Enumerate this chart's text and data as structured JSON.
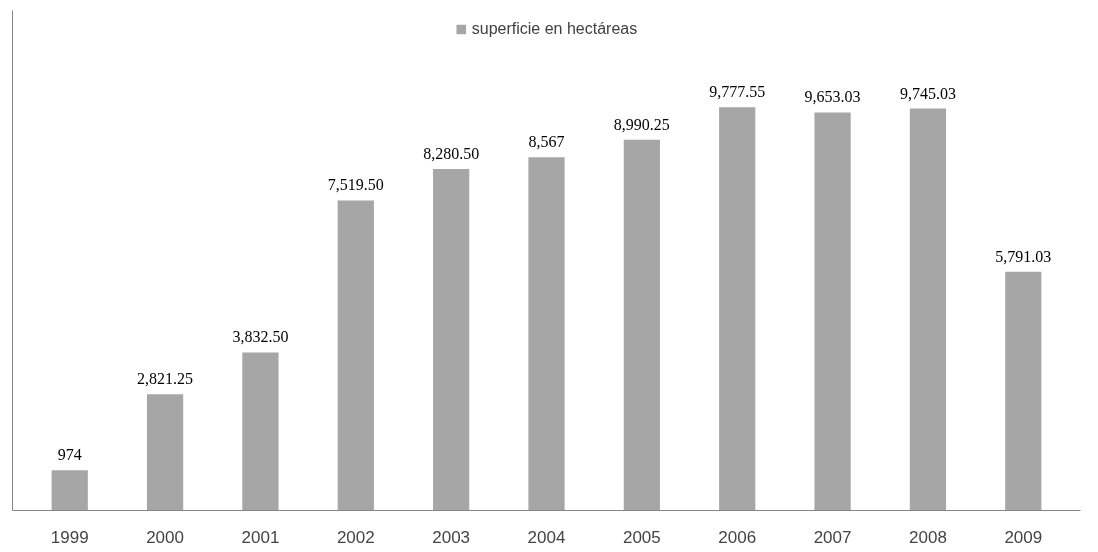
{
  "chart_data": {
    "type": "bar",
    "categories": [
      "1999",
      "2000",
      "2001",
      "2002",
      "2003",
      "2004",
      "2005",
      "2006",
      "2007",
      "2008",
      "2009"
    ],
    "series": [
      {
        "name": "superficie en hectáreas",
        "color": "#a6a6a6",
        "values": [
          974,
          2821.25,
          3832.5,
          7519.5,
          8280.5,
          8567,
          8990.25,
          9777.55,
          9653.03,
          9745.03,
          5791.03
        ],
        "value_labels": [
          "974",
          "2,821.25",
          "3,832.50",
          "7,519.50",
          "8,280.50",
          "8,567",
          "8,990.25",
          "9,777.55",
          "9,653.03",
          "9,745.03",
          "5,791.03"
        ]
      }
    ],
    "legend": "top",
    "grid": false
  }
}
